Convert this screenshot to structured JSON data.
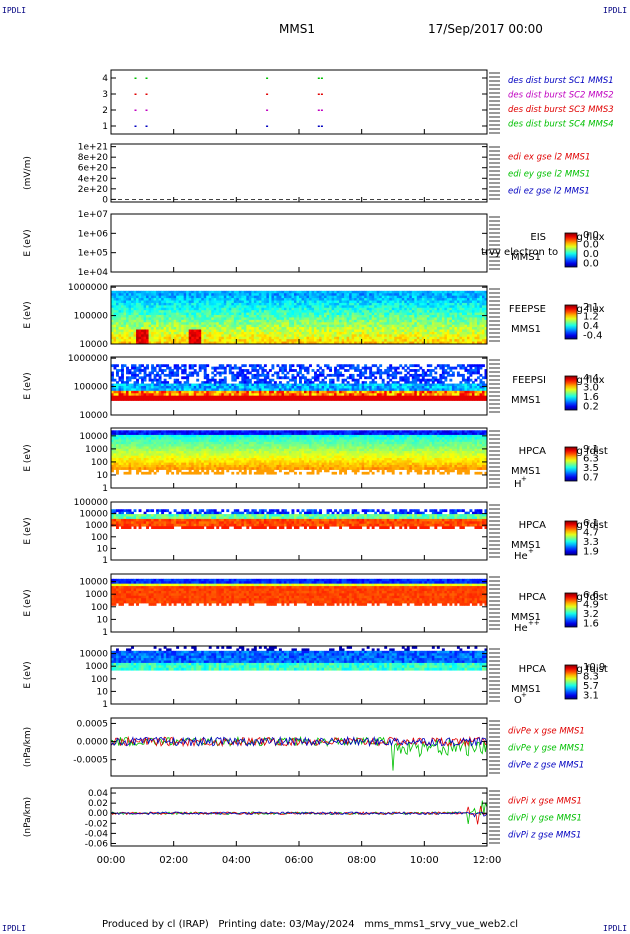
{
  "header": {
    "corner_tag": "IPDLI",
    "spacecraft": "MMS1",
    "date": "17/Sep/2017 00:00"
  },
  "footer": {
    "text": "Produced by cl (IRAP)   Printing date: 03/May/2024   mms_mms1_srvy_vue_web2.cl"
  },
  "colors": {
    "red": "#e00000",
    "green": "#00c000",
    "blue": "#0000c0",
    "magenta": "#c000c0",
    "axis": "#000000"
  },
  "chart_data": {
    "type": "multi-panel",
    "time_axis": {
      "start": "00:00",
      "end": "12:00",
      "ticks": [
        "00:00",
        "02:00",
        "04:00",
        "06:00",
        "08:00",
        "10:00",
        "12:00"
      ]
    },
    "panels": [
      {
        "id": "burst",
        "type": "scatter",
        "ylabel": "",
        "ytick_labels": [
          "1",
          "2",
          "3",
          "4"
        ],
        "ylim": [
          0.5,
          4.5
        ],
        "legend": [
          {
            "text": "des dist burst SC1 MMS1",
            "color": "#0000c0"
          },
          {
            "text": "des dist burst SC2 MMS2",
            "color": "#c000c0"
          },
          {
            "text": "des dist burst SC3 MMS3",
            "color": "#e00000"
          },
          {
            "text": "des dist burst SC4 MMS4",
            "color": "#00c000"
          }
        ],
        "series": [
          {
            "name": "des dist burst SC1 MMS1",
            "y": 1,
            "x_hours": [
              0.75,
              1.1,
              4.95,
              6.6,
              6.7
            ]
          },
          {
            "name": "des dist burst SC2 MMS2",
            "y": 2,
            "x_hours": [
              0.75,
              1.1,
              4.95,
              6.6,
              6.7
            ]
          },
          {
            "name": "des dist burst SC3 MMS3",
            "y": 3,
            "x_hours": [
              0.75,
              1.1,
              4.95,
              6.6,
              6.7
            ]
          },
          {
            "name": "des dist burst SC4 MMS4",
            "y": 4,
            "x_hours": [
              0.75,
              1.1,
              4.95,
              6.6,
              6.7
            ]
          }
        ]
      },
      {
        "id": "edi",
        "type": "line",
        "ylabel": "(mV/m)",
        "ytick_labels": [
          "0",
          "2e+20",
          "4e+20",
          "6e+20",
          "8e+20",
          "1e+21"
        ],
        "yticks": [
          0,
          2e+20,
          4e+20,
          6e+20,
          8e+20,
          1e+21
        ],
        "ylim": [
          -5e+19,
          1.05e+21
        ],
        "legend": [
          {
            "text": "edi ex gse l2 MMS1",
            "color": "#e00000"
          },
          {
            "text": "edi ey gse l2 MMS1",
            "color": "#00c000"
          },
          {
            "text": "edi ez gse l2 MMS1",
            "color": "#0000c0"
          }
        ],
        "series": [
          {
            "name": "edi ez gse l2 MMS1",
            "values": [
              0,
              0
            ]
          }
        ]
      },
      {
        "id": "eis",
        "type": "heatmap",
        "ylabel": "E (eV)",
        "log_y": true,
        "ytick_labels": [
          "1e+04",
          "1e+05",
          "1e+06",
          "1e+07"
        ],
        "yticks": [
          10000.0,
          100000.0,
          1000000.0,
          10000000.0
        ],
        "ylim": [
          10000.0,
          10000000.0
        ],
        "right_labels": [
          "EIS",
          "MMS1"
        ],
        "overlay_text": "trvy electron to",
        "colorbar": {
          "title": "Log flux",
          "ticks": [
            "0.0",
            "0.0",
            "0.0",
            "0.0"
          ]
        }
      },
      {
        "id": "feepse",
        "type": "heatmap",
        "ylabel": "E (eV)",
        "log_y": true,
        "ytick_labels": [
          "10000",
          "100000",
          "1000000"
        ],
        "yticks": [
          10000.0,
          100000.0,
          1000000.0
        ],
        "ylim": [
          10000.0,
          1100000.0
        ],
        "right_labels": [
          "FEEPSE",
          "MMS1"
        ],
        "colorbar": {
          "title": "Log flux",
          "ticks": [
            "2.1",
            "1.2",
            "0.4",
            "-0.4"
          ]
        }
      },
      {
        "id": "feepsi",
        "type": "heatmap",
        "ylabel": "E (eV)",
        "log_y": true,
        "ytick_labels": [
          "10000",
          "100000",
          "1000000"
        ],
        "yticks": [
          10000.0,
          100000.0,
          1000000.0
        ],
        "ylim": [
          10000.0,
          1100000.0
        ],
        "right_labels": [
          "FEEPSI",
          "MMS1"
        ],
        "colorbar": {
          "title": "Log flux",
          "ticks": [
            "4.4",
            "3.0",
            "1.6",
            "0.2"
          ]
        }
      },
      {
        "id": "hpca_h",
        "type": "heatmap",
        "ylabel": "E (eV)",
        "log_y": true,
        "ytick_labels": [
          "1",
          "10",
          "100",
          "1000",
          "10000"
        ],
        "yticks": [
          1,
          10,
          100,
          1000,
          10000
        ],
        "ylim": [
          1,
          40000
        ],
        "right_labels": [
          "HPCA",
          "MMS1"
        ],
        "species": "H",
        "species_sup": "+",
        "colorbar": {
          "title": "Log fdist",
          "ticks": [
            "9.1",
            "6.3",
            "3.5",
            "0.7"
          ]
        }
      },
      {
        "id": "hpca_he",
        "type": "heatmap",
        "ylabel": "E (eV)",
        "log_y": true,
        "ytick_labels": [
          "1",
          "10",
          "100",
          "1000",
          "10000",
          "100000"
        ],
        "yticks": [
          1,
          10,
          100,
          1000,
          10000,
          100000
        ],
        "ylim": [
          1,
          100000
        ],
        "right_labels": [
          "HPCA",
          "MMS1"
        ],
        "species": "He",
        "species_sup": "+",
        "colorbar": {
          "title": "Log fdist",
          "ticks": [
            "6.1",
            "4.7",
            "3.3",
            "1.9"
          ]
        }
      },
      {
        "id": "hpca_hepp",
        "type": "heatmap",
        "ylabel": "E (eV)",
        "log_y": true,
        "ytick_labels": [
          "1",
          "10",
          "100",
          "1000",
          "10000"
        ],
        "yticks": [
          1,
          10,
          100,
          1000,
          10000
        ],
        "ylim": [
          1,
          40000
        ],
        "right_labels": [
          "HPCA",
          "MMS1"
        ],
        "species": "He",
        "species_sup": "++",
        "colorbar": {
          "title": "Log fdist",
          "ticks": [
            "6.6",
            "4.9",
            "3.2",
            "1.6"
          ]
        }
      },
      {
        "id": "hpca_o",
        "type": "heatmap",
        "ylabel": "E (eV)",
        "log_y": true,
        "ytick_labels": [
          "1",
          "10",
          "100",
          "1000",
          "10000"
        ],
        "yticks": [
          1,
          10,
          100,
          1000,
          10000
        ],
        "ylim": [
          1,
          40000
        ],
        "right_labels": [
          "HPCA",
          "MMS1"
        ],
        "species": "O",
        "species_sup": "+",
        "colorbar": {
          "title": "Log fdist",
          "ticks": [
            "10.9",
            "8.3",
            "5.7",
            "3.1"
          ]
        }
      },
      {
        "id": "divpe",
        "type": "line",
        "ylabel": "(nPa/km)",
        "ytick_labels": [
          "-0.0005",
          "0.0000",
          "0.0005"
        ],
        "yticks": [
          -0.0005,
          0,
          0.0005
        ],
        "ylim": [
          -0.00095,
          0.00065
        ],
        "legend": [
          {
            "text": "divPe x gse MMS1",
            "color": "#e00000"
          },
          {
            "text": "divPe y gse MMS1",
            "color": "#00c000"
          },
          {
            "text": "divPe z gse MMS1",
            "color": "#0000c0"
          }
        ]
      },
      {
        "id": "divpi",
        "type": "line",
        "ylabel": "(nPa/km)",
        "ytick_labels": [
          "-0.06",
          "-0.04",
          "-0.02",
          "0.00",
          "0.02",
          "0.04"
        ],
        "yticks": [
          -0.06,
          -0.04,
          -0.02,
          0,
          0.02,
          0.04
        ],
        "ylim": [
          -0.065,
          0.05
        ],
        "legend": [
          {
            "text": "divPi x gse MMS1",
            "color": "#e00000"
          },
          {
            "text": "divPi y gse MMS1",
            "color": "#00c000"
          },
          {
            "text": "divPi z gse MMS1",
            "color": "#0000c0"
          }
        ]
      }
    ]
  }
}
